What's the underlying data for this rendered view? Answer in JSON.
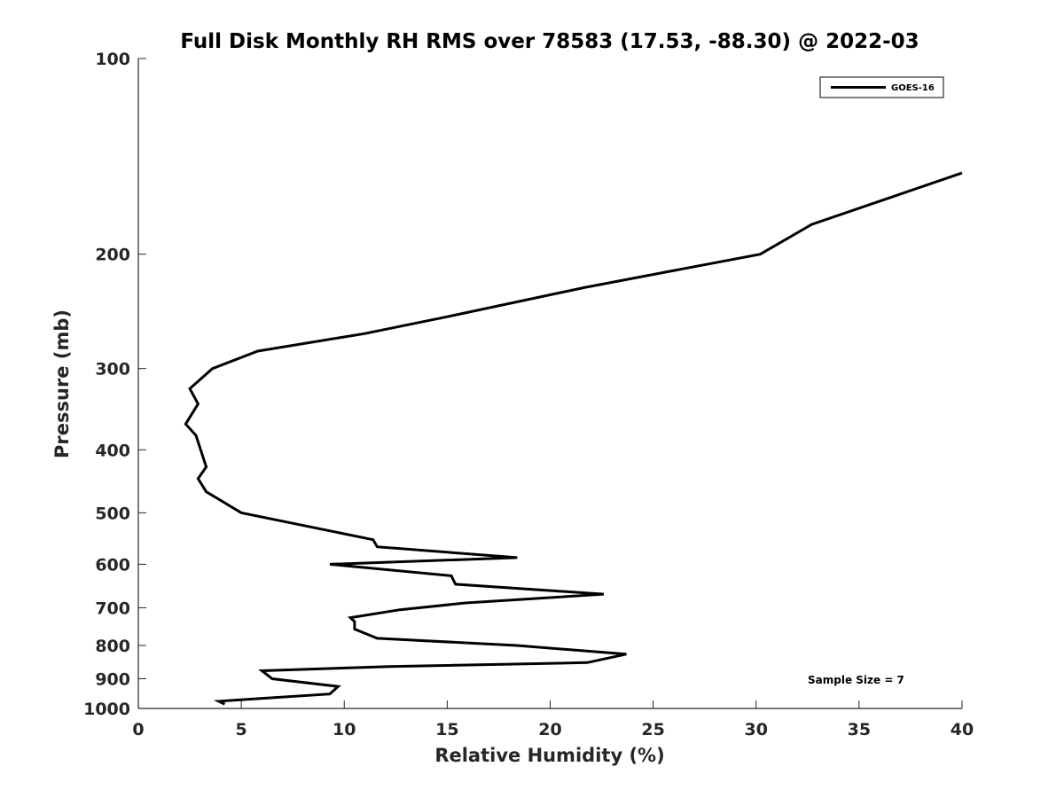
{
  "chart_data": {
    "type": "line",
    "title": "Full Disk Monthly RH RMS over 78583 (17.53, -88.30) @ 2022-03",
    "xlabel": "Relative Humidity (%)",
    "ylabel": "Pressure (mb)",
    "xlim": [
      0,
      40
    ],
    "ylim": [
      100,
      1000
    ],
    "y_scale": "log",
    "y_reversed": true,
    "x_ticks": [
      0,
      5,
      10,
      15,
      20,
      25,
      30,
      35,
      40
    ],
    "x_tick_labels": [
      "0",
      "5",
      "10",
      "15",
      "20",
      "25",
      "30",
      "35",
      "40"
    ],
    "y_ticks": [
      100,
      200,
      300,
      400,
      500,
      600,
      700,
      800,
      900,
      1000
    ],
    "y_tick_labels": [
      "100",
      "200",
      "300",
      "400",
      "500",
      "600",
      "700",
      "800",
      "900",
      "1000"
    ],
    "grid": false,
    "legend_position": "top-right",
    "annotation": "Sample Size = 7",
    "line_color": "#000000",
    "series": [
      {
        "name": "GOES-16",
        "x": [
          40.0,
          32.7,
          30.2,
          21.7,
          14.9,
          11.0,
          5.8,
          3.6,
          2.5,
          2.9,
          2.3,
          2.8,
          3.3,
          2.9,
          3.3,
          5.0,
          11.4,
          11.6,
          18.4,
          9.3,
          15.2,
          15.4,
          22.6,
          15.9,
          12.7,
          10.3,
          10.5,
          10.5,
          11.6,
          18.4,
          23.7,
          21.8,
          12.2,
          6.0,
          6.5,
          9.7,
          9.3,
          6.6,
          3.9,
          4.2
        ],
        "y": [
          150,
          180,
          200,
          225,
          250,
          265,
          282,
          300,
          322,
          340,
          365,
          380,
          425,
          443,
          464,
          500,
          550,
          564,
          586,
          600,
          625,
          644,
          667,
          688,
          705,
          725,
          735,
          755,
          780,
          800,
          825,
          850,
          862,
          875,
          900,
          925,
          950,
          962,
          975,
          985
        ]
      }
    ]
  }
}
